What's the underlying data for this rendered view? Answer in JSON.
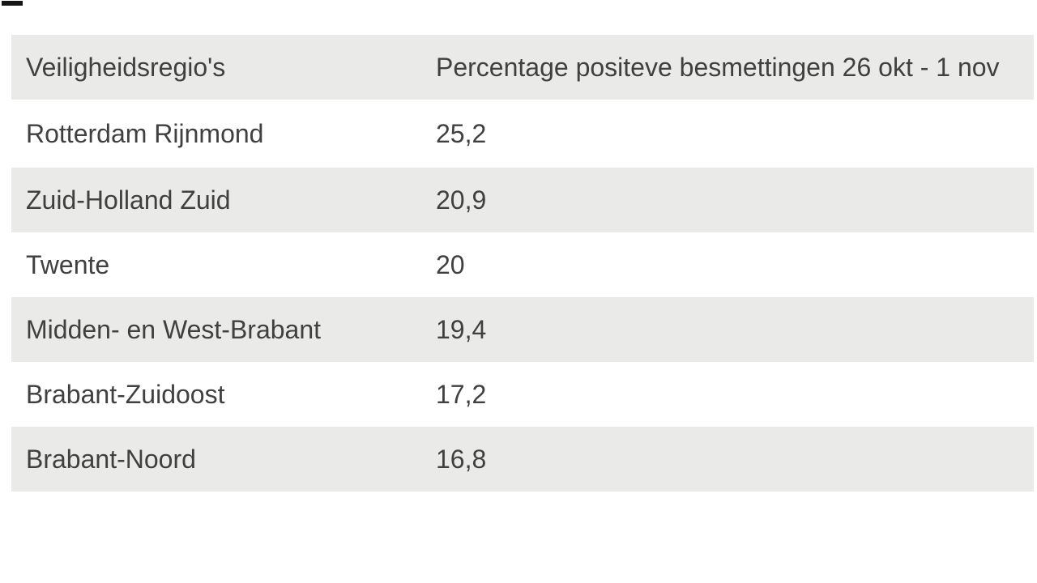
{
  "page": {
    "background": "#ffffff"
  },
  "colors": {
    "row_alt_background": "#eaeae8",
    "row_background": "#ffffff",
    "text": "#404040",
    "corner_mark": "#161616"
  },
  "table": {
    "header": {
      "region": "Veiligheidsregio's",
      "value": "Percentage positeve besmettingen 26 okt - 1 nov"
    },
    "rows": [
      {
        "region": "Rotterdam Rijnmond",
        "value": "25,2"
      },
      {
        "region": "Zuid-Holland Zuid",
        "value": "20,9"
      },
      {
        "region": "Twente",
        "value": "20"
      },
      {
        "region": "Midden- en West-Brabant",
        "value": "19,4"
      },
      {
        "region": "Brabant-Zuidoost",
        "value": "17,2"
      },
      {
        "region": "Brabant-Noord",
        "value": "16,8"
      }
    ]
  },
  "chart_data": {
    "type": "table",
    "title": "",
    "columns": [
      "Veiligheidsregio's",
      "Percentage positeve besmettingen 26 okt - 1 nov"
    ],
    "categories": [
      "Rotterdam Rijnmond",
      "Zuid-Holland Zuid",
      "Twente",
      "Midden- en West-Brabant",
      "Brabant-Zuidoost",
      "Brabant-Noord"
    ],
    "values": [
      25.2,
      20.9,
      20,
      19.4,
      17.2,
      16.8
    ],
    "value_period": "26 okt - 1 nov",
    "layout": "alternating-row table, header row shaded, no borders"
  }
}
